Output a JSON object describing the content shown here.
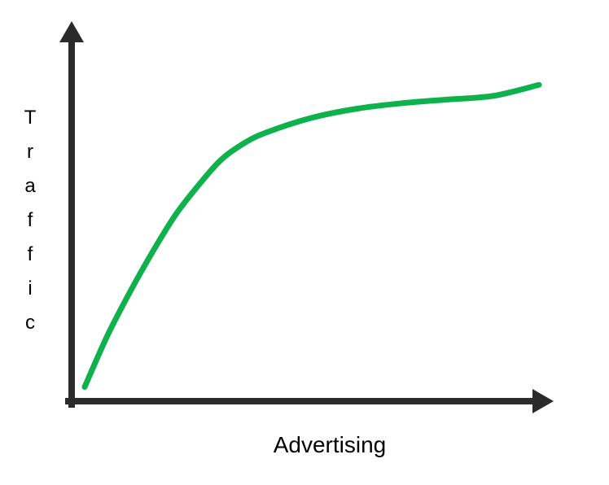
{
  "chart_data": {
    "type": "line",
    "title": "",
    "xlabel": "Advertising",
    "ylabel": "Traffic",
    "xlim": [
      0,
      10
    ],
    "ylim": [
      0,
      10
    ],
    "grid": false,
    "series": [
      {
        "values": [
          {
            "x": 0.0,
            "y": 0.1
          },
          {
            "x": 0.5,
            "y": 1.5
          },
          {
            "x": 1.0,
            "y": 2.7
          },
          {
            "x": 1.5,
            "y": 3.8
          },
          {
            "x": 2.0,
            "y": 4.8
          },
          {
            "x": 2.5,
            "y": 5.6
          },
          {
            "x": 3.0,
            "y": 6.3
          },
          {
            "x": 3.5,
            "y": 6.75
          },
          {
            "x": 4.0,
            "y": 7.05
          },
          {
            "x": 5.0,
            "y": 7.45
          },
          {
            "x": 6.0,
            "y": 7.7
          },
          {
            "x": 7.0,
            "y": 7.85
          },
          {
            "x": 8.0,
            "y": 7.95
          },
          {
            "x": 9.0,
            "y": 8.05
          },
          {
            "x": 10.0,
            "y": 8.35
          }
        ]
      }
    ],
    "colors": {
      "axis": "#2b2b2b",
      "line": "#0fb14d",
      "text": "#000000"
    }
  }
}
